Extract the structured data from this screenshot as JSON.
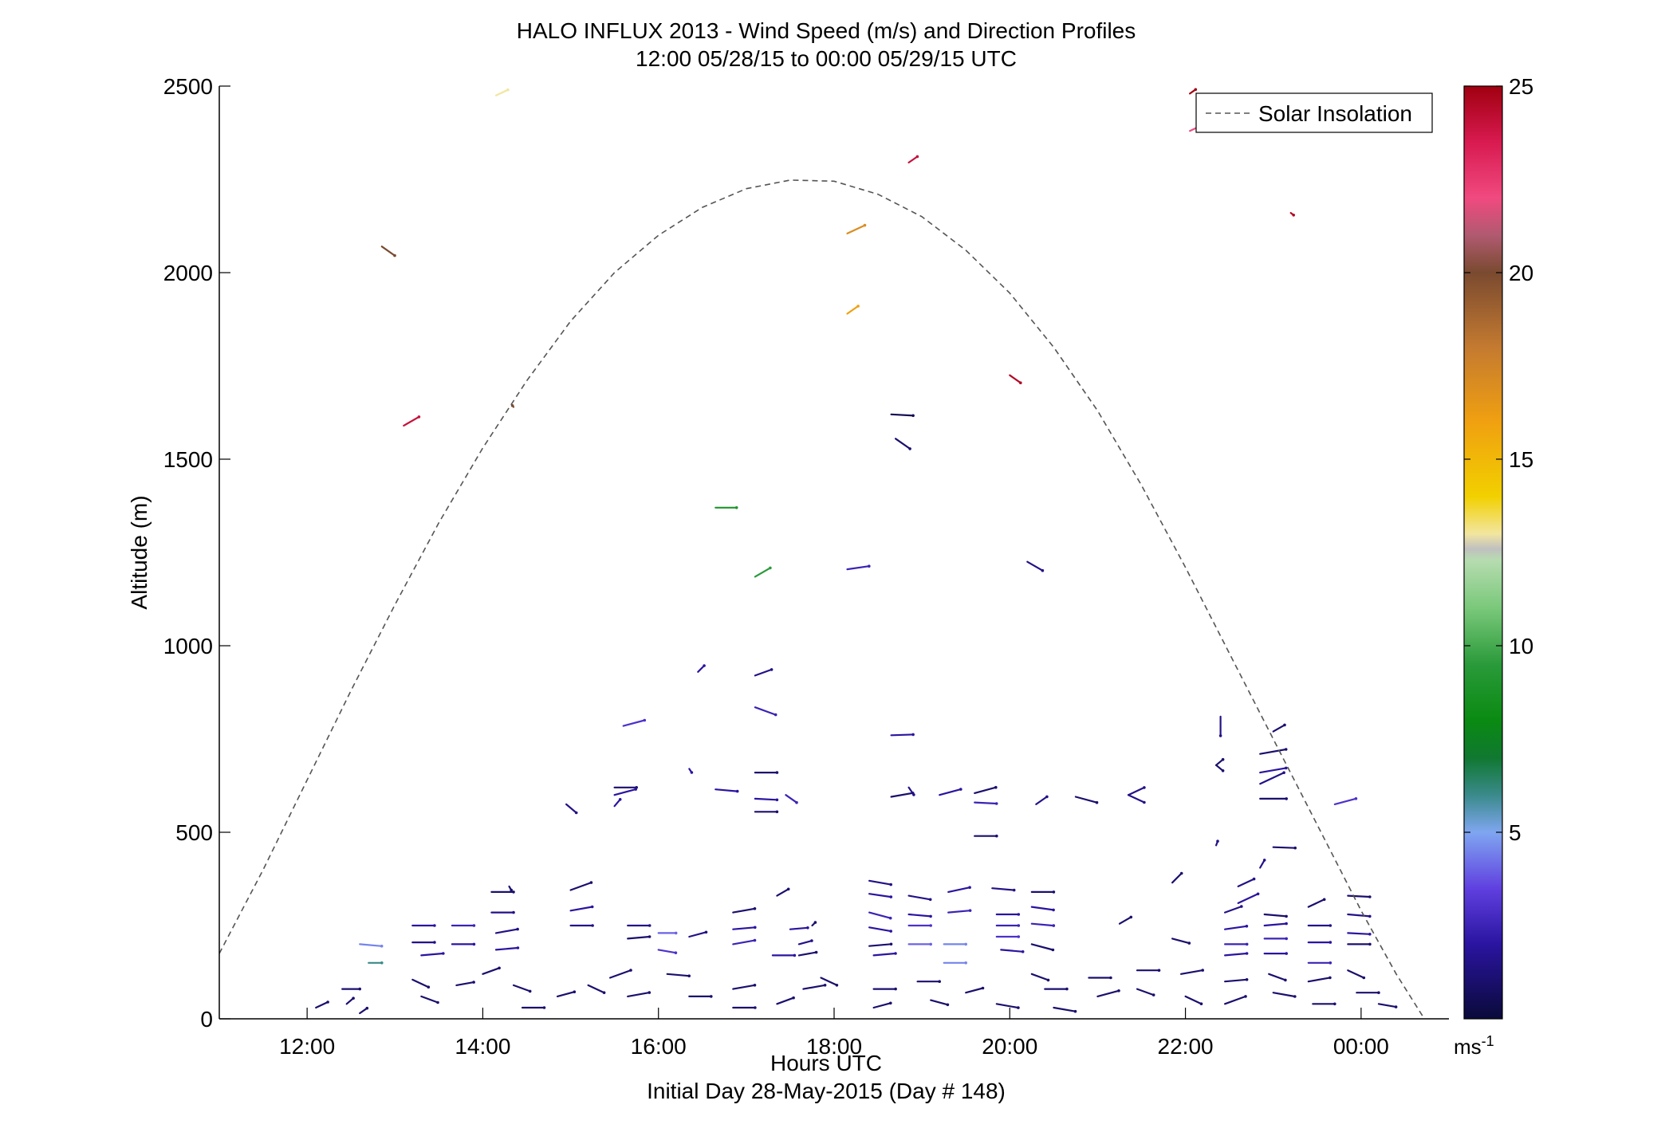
{
  "chart_data": {
    "type": "vector",
    "title": "HALO INFLUX 2013 - Wind Speed (m/s) and Direction Profiles",
    "subtitle": "12:00 05/28/15 to 00:00 05/29/15  UTC",
    "xlabel": "Hours UTC",
    "x_sublabel": "Initial Day 28-May-2015 (Day # 148)",
    "ylabel": "Altitude (m)",
    "xlim": [
      11.0,
      25.0
    ],
    "ylim": [
      0,
      2500
    ],
    "x_ticks": [
      {
        "value": 12,
        "label": "12:00"
      },
      {
        "value": 14,
        "label": "14:00"
      },
      {
        "value": 16,
        "label": "16:00"
      },
      {
        "value": 18,
        "label": "18:00"
      },
      {
        "value": 20,
        "label": "20:00"
      },
      {
        "value": 22,
        "label": "22:00"
      },
      {
        "value": 24,
        "label": "00:00"
      }
    ],
    "y_ticks": [
      {
        "value": 0,
        "label": "0"
      },
      {
        "value": 500,
        "label": "500"
      },
      {
        "value": 1000,
        "label": "1000"
      },
      {
        "value": 1500,
        "label": "1500"
      },
      {
        "value": 2000,
        "label": "2000"
      },
      {
        "value": 2500,
        "label": "2500"
      }
    ],
    "grid": false,
    "legend": {
      "position": "top-right",
      "entries": [
        {
          "label": "Solar Insolation",
          "style": "dashed",
          "color": "#555555"
        }
      ]
    },
    "colorbar": {
      "range": [
        0,
        25
      ],
      "ticks": [
        {
          "value": 5,
          "label": "5"
        },
        {
          "value": 10,
          "label": "10"
        },
        {
          "value": 15,
          "label": "15"
        },
        {
          "value": 20,
          "label": "20"
        },
        {
          "value": 25,
          "label": "25"
        }
      ],
      "unit_label": "ms",
      "unit_exponent": "-1",
      "stops": [
        {
          "v": 0,
          "color": "#0a0a3a"
        },
        {
          "v": 2,
          "color": "#2a14a0"
        },
        {
          "v": 3.5,
          "color": "#6040e0"
        },
        {
          "v": 5,
          "color": "#7fa6f0"
        },
        {
          "v": 6,
          "color": "#3a8a8a"
        },
        {
          "v": 7,
          "color": "#107830"
        },
        {
          "v": 8,
          "color": "#0a8a12"
        },
        {
          "v": 9.5,
          "color": "#2a9a3a"
        },
        {
          "v": 11,
          "color": "#7ac87a"
        },
        {
          "v": 12.3,
          "color": "#b6dcb0"
        },
        {
          "v": 12.6,
          "color": "#c0c0c0"
        },
        {
          "v": 13,
          "color": "#f2e6a0"
        },
        {
          "v": 14,
          "color": "#f2d000"
        },
        {
          "v": 16,
          "color": "#f0a010"
        },
        {
          "v": 18,
          "color": "#c47a30"
        },
        {
          "v": 20,
          "color": "#7a4a30"
        },
        {
          "v": 21,
          "color": "#b05a70"
        },
        {
          "v": 22,
          "color": "#f04a80"
        },
        {
          "v": 23.5,
          "color": "#d81a50"
        },
        {
          "v": 25,
          "color": "#a00010"
        }
      ]
    },
    "solar_insolation": {
      "color": "#555555",
      "style": "dashed",
      "points": [
        [
          11.0,
          175
        ],
        [
          11.5,
          400
        ],
        [
          12.0,
          640
        ],
        [
          12.5,
          880
        ],
        [
          13.0,
          1110
        ],
        [
          13.5,
          1330
        ],
        [
          14.0,
          1530
        ],
        [
          14.5,
          1710
        ],
        [
          15.0,
          1870
        ],
        [
          15.5,
          2000
        ],
        [
          16.0,
          2100
        ],
        [
          16.5,
          2175
        ],
        [
          17.0,
          2225
        ],
        [
          17.5,
          2248
        ],
        [
          18.0,
          2245
        ],
        [
          18.5,
          2210
        ],
        [
          19.0,
          2150
        ],
        [
          19.5,
          2060
        ],
        [
          20.0,
          1945
        ],
        [
          20.5,
          1800
        ],
        [
          21.0,
          1630
        ],
        [
          21.5,
          1430
        ],
        [
          22.0,
          1210
        ],
        [
          22.5,
          980
        ],
        [
          23.0,
          750
        ],
        [
          23.5,
          520
        ],
        [
          24.0,
          290
        ],
        [
          24.4,
          120
        ],
        [
          24.72,
          0
        ]
      ]
    },
    "vectors": [
      [
        14.15,
        2475,
        0.15,
        25,
        13
      ],
      [
        12.85,
        2070,
        0.18,
        -35,
        20
      ],
      [
        22.05,
        2480,
        0.08,
        35,
        25
      ],
      [
        22.05,
        2380,
        0.12,
        25,
        22
      ],
      [
        18.85,
        2295,
        0.12,
        35,
        24
      ],
      [
        23.2,
        2160,
        0.04,
        -38,
        24.5
      ],
      [
        18.15,
        2105,
        0.22,
        25,
        17
      ],
      [
        18.15,
        1890,
        0.15,
        35,
        16
      ],
      [
        13.1,
        1590,
        0.2,
        30,
        24
      ],
      [
        14.35,
        1640,
        -0.02,
        -50,
        20
      ],
      [
        20.0,
        1725,
        0.15,
        -35,
        24.5
      ],
      [
        16.65,
        1370,
        0.24,
        0,
        9
      ],
      [
        17.1,
        1185,
        0.2,
        30,
        9.5
      ],
      [
        18.15,
        1205,
        0.25,
        8,
        2.5
      ],
      [
        20.2,
        1225,
        0.2,
        -30,
        1.5
      ],
      [
        18.65,
        1620,
        0.25,
        -3,
        0.5
      ],
      [
        18.7,
        1555,
        0.2,
        -35,
        1
      ],
      [
        16.45,
        930,
        0.1,
        45,
        2
      ],
      [
        17.1,
        920,
        0.2,
        20,
        1.5
      ],
      [
        17.1,
        835,
        0.25,
        -20,
        2.5
      ],
      [
        15.6,
        785,
        0.25,
        15,
        3
      ],
      [
        18.65,
        760,
        0.25,
        2,
        2
      ],
      [
        22.4,
        810,
        0,
        -60,
        1.5
      ],
      [
        23.0,
        770,
        0.15,
        30,
        1
      ],
      [
        16.35,
        670,
        0.05,
        -55,
        2
      ],
      [
        22.35,
        680,
        0.1,
        -40,
        1
      ],
      [
        22.35,
        680,
        0.1,
        40,
        1
      ],
      [
        22.85,
        710,
        0.3,
        10,
        1
      ],
      [
        22.85,
        660,
        0.3,
        10,
        2
      ],
      [
        22.85,
        630,
        0.3,
        25,
        1.5
      ],
      [
        22.85,
        590,
        0.3,
        0,
        1
      ],
      [
        23.7,
        575,
        0.25,
        15,
        3
      ],
      [
        17.1,
        660,
        0.25,
        0,
        1
      ],
      [
        17.1,
        590,
        0.25,
        -3,
        2
      ],
      [
        17.1,
        555,
        0.25,
        0,
        1
      ],
      [
        16.65,
        615,
        0.25,
        -5,
        2
      ],
      [
        15.5,
        620,
        0.25,
        0,
        1
      ],
      [
        15.5,
        600,
        0.25,
        15,
        2
      ],
      [
        15.5,
        570,
        0.1,
        50,
        2
      ],
      [
        14.95,
        575,
        0.15,
        -40,
        1.5
      ],
      [
        17.45,
        600,
        0.15,
        -35,
        2.5
      ],
      [
        18.65,
        595,
        0.25,
        10,
        1
      ],
      [
        18.85,
        620,
        0.1,
        -55,
        1.5
      ],
      [
        19.2,
        600,
        0.25,
        15,
        2
      ],
      [
        19.6,
        580,
        0.25,
        -3,
        2.5
      ],
      [
        19.6,
        605,
        0.25,
        15,
        1
      ],
      [
        20.3,
        575,
        0.15,
        35,
        1.5
      ],
      [
        20.75,
        595,
        0.25,
        -15,
        1
      ],
      [
        21.35,
        600,
        0.2,
        25,
        1.5
      ],
      [
        21.35,
        600,
        0.2,
        -25,
        1.5
      ],
      [
        19.6,
        490,
        0.25,
        0,
        1
      ],
      [
        22.35,
        465,
        0.05,
        70,
        1.5
      ],
      [
        23.0,
        460,
        0.25,
        -2,
        1
      ],
      [
        22.85,
        405,
        0.1,
        60,
        1.5
      ],
      [
        21.85,
        365,
        0.15,
        45,
        1
      ],
      [
        22.6,
        355,
        0.2,
        25,
        1.5
      ],
      [
        22.6,
        310,
        0.25,
        25,
        2
      ],
      [
        14.1,
        340,
        0.25,
        0,
        1
      ],
      [
        14.3,
        355,
        0.05,
        -60,
        1
      ],
      [
        14.1,
        285,
        0.25,
        0,
        1.5
      ],
      [
        15.0,
        345,
        0.25,
        20,
        1
      ],
      [
        15.0,
        290,
        0.25,
        10,
        2
      ],
      [
        15.0,
        250,
        0.25,
        0,
        1.5
      ],
      [
        13.2,
        250,
        0.25,
        0,
        2
      ],
      [
        13.2,
        205,
        0.25,
        0,
        1.5
      ],
      [
        12.6,
        200,
        0.25,
        -5,
        4.5
      ],
      [
        12.7,
        150,
        0.15,
        0,
        6
      ],
      [
        13.3,
        170,
        0.25,
        5,
        2
      ],
      [
        13.65,
        250,
        0.25,
        0,
        2.5
      ],
      [
        13.65,
        200,
        0.25,
        0,
        2
      ],
      [
        14.15,
        230,
        0.25,
        10,
        1.5
      ],
      [
        14.15,
        185,
        0.25,
        5,
        2
      ],
      [
        15.65,
        250,
        0.25,
        0,
        1.5
      ],
      [
        15.65,
        215,
        0.25,
        5,
        1
      ],
      [
        16.0,
        230,
        0.2,
        0,
        4
      ],
      [
        16.0,
        185,
        0.2,
        -10,
        3
      ],
      [
        16.35,
        220,
        0.2,
        15,
        1.5
      ],
      [
        16.85,
        285,
        0.25,
        10,
        1
      ],
      [
        16.85,
        240,
        0.25,
        5,
        2
      ],
      [
        16.85,
        200,
        0.25,
        10,
        2.5
      ],
      [
        17.3,
        170,
        0.25,
        0,
        2
      ],
      [
        17.35,
        330,
        0.15,
        30,
        1
      ],
      [
        17.5,
        240,
        0.2,
        5,
        2
      ],
      [
        17.6,
        200,
        0.15,
        15,
        1.5
      ],
      [
        17.6,
        170,
        0.2,
        10,
        1
      ],
      [
        17.75,
        250,
        0.05,
        45,
        1
      ],
      [
        18.4,
        370,
        0.25,
        -10,
        1.5
      ],
      [
        18.4,
        335,
        0.25,
        -8,
        2
      ],
      [
        18.4,
        285,
        0.25,
        -15,
        2.5
      ],
      [
        18.4,
        245,
        0.25,
        -10,
        2
      ],
      [
        18.4,
        195,
        0.25,
        5,
        1
      ],
      [
        18.45,
        170,
        0.25,
        5,
        2
      ],
      [
        18.85,
        330,
        0.25,
        -10,
        1.5
      ],
      [
        18.85,
        280,
        0.25,
        -5,
        2
      ],
      [
        18.85,
        250,
        0.25,
        0,
        3
      ],
      [
        18.85,
        200,
        0.25,
        0,
        4
      ],
      [
        19.25,
        200,
        0.25,
        0,
        4.5
      ],
      [
        19.25,
        150,
        0.25,
        0,
        4.5
      ],
      [
        19.3,
        340,
        0.25,
        12,
        2
      ],
      [
        19.3,
        285,
        0.25,
        5,
        2.5
      ],
      [
        19.8,
        350,
        0.25,
        -5,
        1.5
      ],
      [
        19.85,
        280,
        0.25,
        0,
        2
      ],
      [
        19.85,
        250,
        0.25,
        0,
        2.5
      ],
      [
        19.85,
        220,
        0.25,
        0,
        3
      ],
      [
        19.9,
        185,
        0.25,
        -5,
        2
      ],
      [
        20.25,
        340,
        0.25,
        0,
        1
      ],
      [
        20.25,
        300,
        0.25,
        -8,
        2
      ],
      [
        20.25,
        255,
        0.25,
        -5,
        2.5
      ],
      [
        20.25,
        200,
        0.25,
        -15,
        1
      ],
      [
        21.25,
        255,
        0.15,
        30,
        1
      ],
      [
        21.85,
        215,
        0.2,
        -15,
        1
      ],
      [
        22.45,
        285,
        0.2,
        20,
        1.5
      ],
      [
        22.45,
        240,
        0.25,
        8,
        2
      ],
      [
        22.45,
        200,
        0.25,
        0,
        2.5
      ],
      [
        22.45,
        170,
        0.25,
        5,
        2
      ],
      [
        22.9,
        280,
        0.25,
        -5,
        1
      ],
      [
        22.9,
        250,
        0.25,
        5,
        2
      ],
      [
        22.9,
        215,
        0.25,
        0,
        2.5
      ],
      [
        22.9,
        175,
        0.25,
        0,
        2
      ],
      [
        23.4,
        300,
        0.2,
        25,
        1
      ],
      [
        23.4,
        250,
        0.25,
        0,
        1.5
      ],
      [
        23.4,
        205,
        0.25,
        0,
        2
      ],
      [
        23.4,
        150,
        0.25,
        0,
        2.5
      ],
      [
        23.85,
        330,
        0.25,
        -3,
        1
      ],
      [
        23.85,
        280,
        0.25,
        -5,
        1.5
      ],
      [
        23.85,
        230,
        0.25,
        -3,
        2
      ],
      [
        23.85,
        200,
        0.25,
        0,
        1
      ],
      [
        12.4,
        80,
        0.2,
        0,
        1
      ],
      [
        12.45,
        40,
        0.1,
        40,
        1
      ],
      [
        12.1,
        30,
        0.15,
        25,
        1
      ],
      [
        12.6,
        15,
        0.1,
        35,
        1
      ],
      [
        13.2,
        105,
        0.2,
        -25,
        1
      ],
      [
        13.3,
        60,
        0.2,
        -20,
        1
      ],
      [
        13.7,
        90,
        0.2,
        10,
        1
      ],
      [
        14.0,
        120,
        0.2,
        20,
        1
      ],
      [
        14.35,
        90,
        0.2,
        -20,
        1
      ],
      [
        14.45,
        30,
        0.25,
        0,
        1
      ],
      [
        14.85,
        60,
        0.2,
        15,
        1
      ],
      [
        15.2,
        90,
        0.2,
        -25,
        1
      ],
      [
        15.45,
        110,
        0.25,
        20,
        1
      ],
      [
        15.65,
        60,
        0.25,
        10,
        1
      ],
      [
        16.1,
        120,
        0.25,
        -5,
        1
      ],
      [
        16.35,
        60,
        0.25,
        0,
        1
      ],
      [
        16.85,
        80,
        0.25,
        10,
        1
      ],
      [
        16.85,
        30,
        0.25,
        0,
        1
      ],
      [
        17.35,
        40,
        0.2,
        20,
        1
      ],
      [
        17.65,
        80,
        0.25,
        10,
        1
      ],
      [
        17.85,
        110,
        0.2,
        -25,
        1
      ],
      [
        18.45,
        80,
        0.25,
        0,
        1
      ],
      [
        18.45,
        30,
        0.2,
        15,
        1
      ],
      [
        18.95,
        100,
        0.25,
        0,
        1
      ],
      [
        19.1,
        50,
        0.2,
        -15,
        1
      ],
      [
        19.5,
        70,
        0.2,
        15,
        1
      ],
      [
        19.85,
        40,
        0.25,
        -10,
        1
      ],
      [
        20.25,
        120,
        0.2,
        -20,
        1
      ],
      [
        20.4,
        80,
        0.25,
        0,
        1
      ],
      [
        20.5,
        30,
        0.25,
        -10,
        1
      ],
      [
        20.9,
        110,
        0.25,
        0,
        1
      ],
      [
        21.0,
        60,
        0.25,
        15,
        1
      ],
      [
        21.45,
        130,
        0.25,
        0,
        1
      ],
      [
        21.45,
        80,
        0.2,
        -20,
        1
      ],
      [
        21.95,
        120,
        0.25,
        10,
        1
      ],
      [
        22.0,
        60,
        0.2,
        -25,
        1
      ],
      [
        22.45,
        100,
        0.25,
        5,
        1
      ],
      [
        22.45,
        40,
        0.25,
        20,
        1
      ],
      [
        22.95,
        120,
        0.2,
        -20,
        1
      ],
      [
        23.0,
        70,
        0.25,
        -10,
        1
      ],
      [
        23.4,
        100,
        0.25,
        10,
        1
      ],
      [
        23.45,
        40,
        0.25,
        0,
        1
      ],
      [
        23.85,
        130,
        0.2,
        -25,
        1
      ],
      [
        23.95,
        70,
        0.25,
        0,
        1
      ],
      [
        24.2,
        40,
        0.2,
        -10,
        1
      ]
    ]
  }
}
